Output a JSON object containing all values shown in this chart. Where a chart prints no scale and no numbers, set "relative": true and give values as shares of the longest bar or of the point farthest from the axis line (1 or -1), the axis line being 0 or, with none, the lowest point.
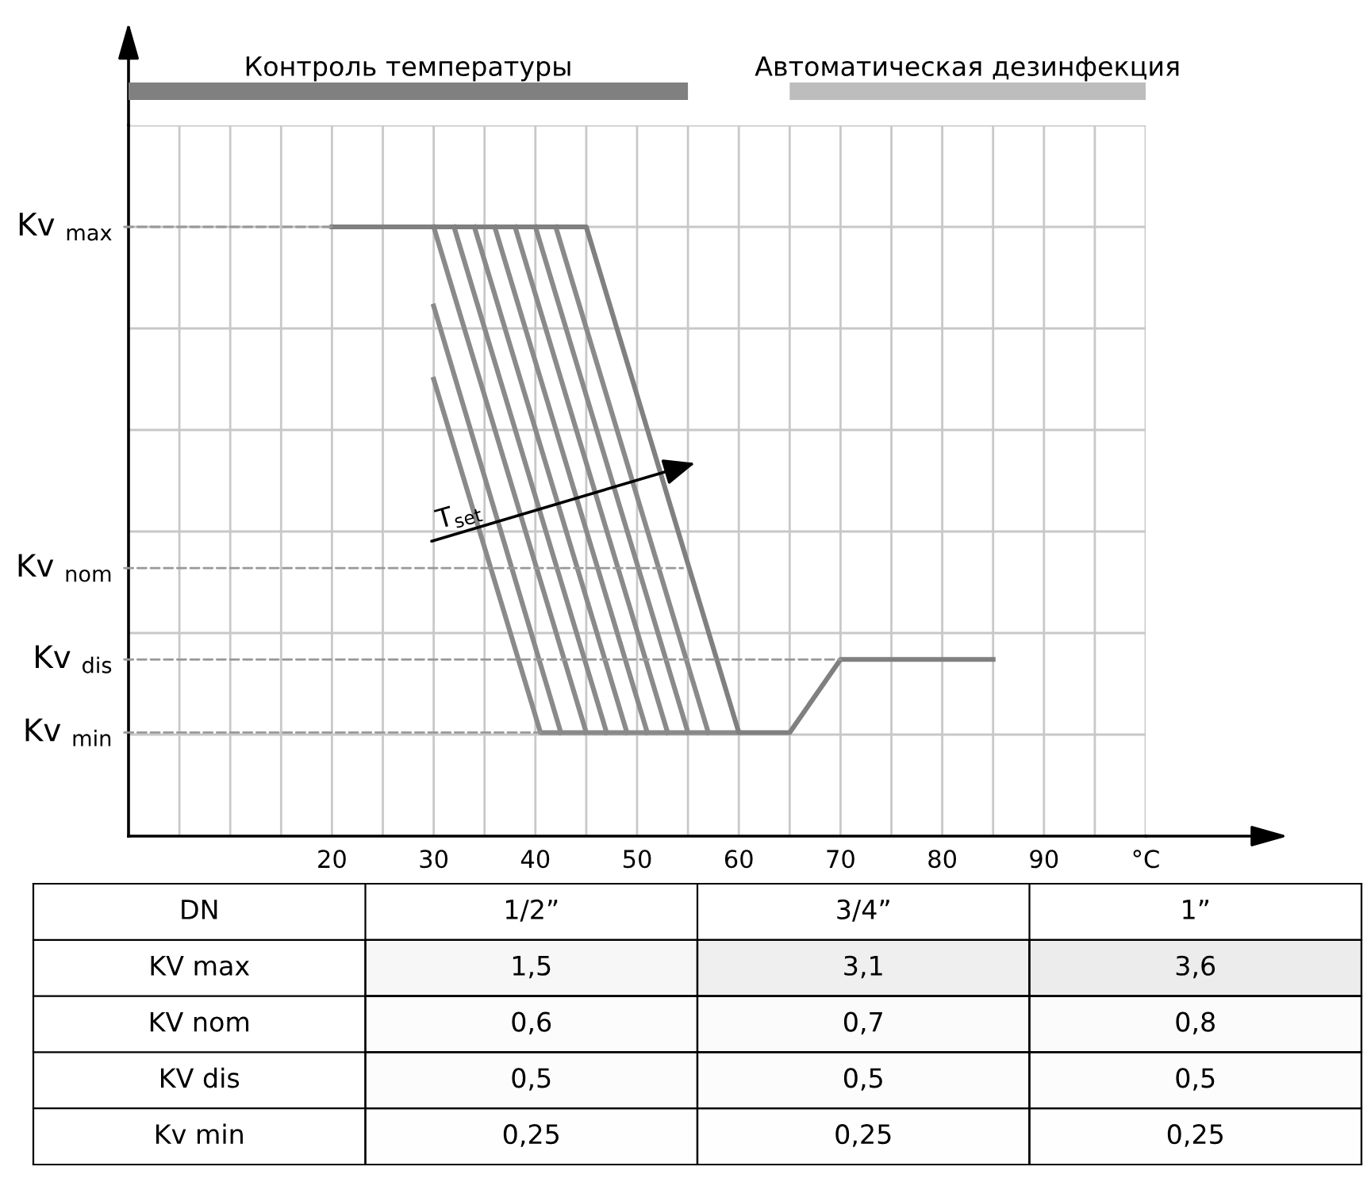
{
  "chart_data": [
    {
      "type": "bar",
      "orientation": "horizontal",
      "categories": [
        null
      ],
      "xlim": [
        0,
        100
      ],
      "tick_labels": false,
      "series": [
        {
          "name": "Контроль температуры",
          "color": "#808080",
          "base": [
            0
          ],
          "values": [
            55
          ]
        },
        {
          "name": "Автоматическая дезинфекция",
          "color": "#bdbdbd",
          "base": [
            65
          ],
          "values": [
            35
          ]
        }
      ]
    },
    {
      "type": "line",
      "relative": true,
      "xlim": [
        0,
        100
      ],
      "xticks": [
        {
          "value": 5,
          "label": null
        },
        {
          "value": 10,
          "label": null
        },
        {
          "value": 15,
          "label": null
        },
        20,
        {
          "value": 25,
          "label": null
        },
        30,
        {
          "value": 35,
          "label": null
        },
        40,
        {
          "value": 45,
          "label": null
        },
        50,
        {
          "value": 55,
          "label": null
        },
        60,
        {
          "value": 65,
          "label": null
        },
        70,
        {
          "value": 75,
          "label": null
        },
        80,
        {
          "value": 85,
          "label": null
        },
        90,
        {
          "value": 95,
          "label": null
        },
        {
          "value": 100,
          "label": "°C"
        }
      ],
      "grid": true,
      "annotations": [
        "T$_{set}$",
        {
          "text": "Kv $_{max}$",
          "x": 20,
          "y": 1
        },
        {
          "text": "Kv $_{nom}$",
          "x": 54.5,
          "y": 0.44
        },
        {
          "text": "Kv $_{dis}$",
          "x": 70,
          "y": 0.29
        },
        {
          "text": "Kv $_{min}$",
          "x": 40.5,
          "y": 0.17
        }
      ],
      "series": [
        {
          "color": "#8a8a8a",
          "x": [
            30,
            40.5,
            60
          ],
          "values": [
            0.75,
            0.17,
            0.17
          ]
        },
        {
          "color": "#8a8a8a",
          "x": [
            30,
            42.5
          ],
          "values": [
            0.87,
            0.17
          ]
        },
        {
          "color": "#8a8a8a",
          "x": [
            30,
            45
          ],
          "values": [
            1,
            0.17
          ]
        },
        {
          "color": "#8a8a8a",
          "x": [
            32,
            47
          ],
          "values": [
            1,
            0.17
          ]
        },
        {
          "color": "#8a8a8a",
          "x": [
            34,
            49
          ],
          "values": [
            1,
            0.17
          ]
        },
        {
          "color": "#8a8a8a",
          "x": [
            36,
            51
          ],
          "values": [
            1,
            0.17
          ]
        },
        {
          "color": "#8a8a8a",
          "x": [
            38,
            53
          ],
          "values": [
            1,
            0.17
          ]
        },
        {
          "color": "#8a8a8a",
          "x": [
            40,
            55
          ],
          "values": [
            1,
            0.17
          ]
        },
        {
          "color": "#8a8a8a",
          "x": [
            42,
            57
          ],
          "values": [
            1,
            0.17
          ]
        },
        {
          "color": "#808080",
          "x": [
            20,
            45,
            60,
            65,
            70,
            85
          ],
          "values": [
            1,
            1,
            0.17,
            0.17,
            0.29,
            0.29
          ]
        }
      ]
    },
    {
      "type": "heatmap",
      "ylabel": "DN",
      "color": "#ffffff",
      "categories": [
        "1/2”",
        "3/4”",
        "1”"
      ],
      "y_categories": [
        "KV max",
        "KV nom",
        "KV dis",
        "Kv min"
      ],
      "cells": [
        [
          1.5,
          3.1,
          3.6
        ],
        [
          0.6,
          0.7,
          0.8
        ],
        [
          0.5,
          0.5,
          0.5
        ],
        [
          0.25,
          0.25,
          0.25
        ]
      ],
      "cell_labels": [
        [
          "1,5",
          "3,1",
          "3,6"
        ],
        [
          "0,6",
          "0,7",
          "0,8"
        ],
        [
          "0,5",
          "0,5",
          "0,5"
        ],
        [
          "0,25",
          "0,25",
          "0,25"
        ]
      ]
    }
  ]
}
